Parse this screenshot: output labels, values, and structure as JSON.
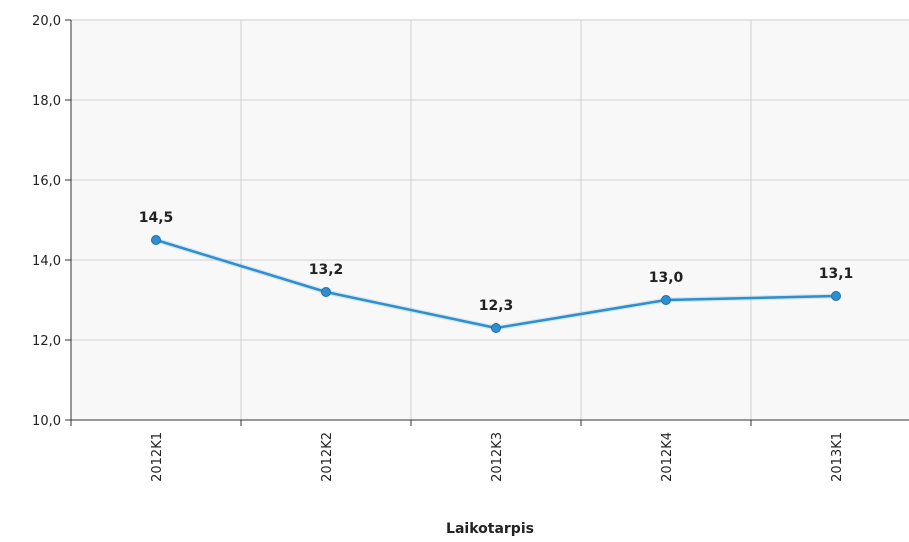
{
  "chart_data": {
    "type": "line",
    "categories": [
      "2012K1",
      "2012K2",
      "2012K3",
      "2012K4",
      "2013K1"
    ],
    "series": [
      {
        "values": [
          14.5,
          13.2,
          12.3,
          13.0,
          13.1
        ]
      }
    ],
    "data_labels": [
      "14,5",
      "13,2",
      "12,3",
      "13,0",
      "13,1"
    ],
    "y_ticks": [
      "10,0",
      "12,0",
      "14,0",
      "16,0",
      "18,0",
      "20,0"
    ],
    "xlabel": "Laikotarpis",
    "ylim": [
      10,
      20
    ],
    "grid": true,
    "line_color": "#2e8fd0",
    "plot_background": "#f8f8f8"
  }
}
